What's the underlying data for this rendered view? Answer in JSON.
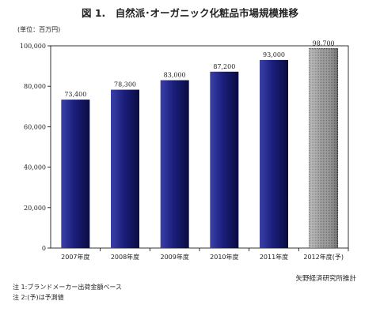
{
  "title": "図 1.　自然派･オーガニック化粧品市場規模推移",
  "unit_label": "(単位：百万円)",
  "source": "矢野経済研究所推計",
  "notes": [
    "注 1:ブランドメーカー出荷金額ベース",
    "注 2:(予)は予測値"
  ],
  "colors": {
    "bar": "#1a1f7a",
    "forecast_bar": "#888888",
    "axis": "#000000"
  },
  "chart_data": {
    "type": "bar",
    "title": "図 1.　自然派･オーガニック化粧品市場規模推移",
    "xlabel": "",
    "ylabel": "(単位：百万円)",
    "categories": [
      "2007年度",
      "2008年度",
      "2009年度",
      "2010年度",
      "2011年度",
      "2012年度(予)"
    ],
    "values": [
      73400,
      78300,
      83000,
      87200,
      93000,
      98700
    ],
    "value_labels": [
      "73,400",
      "78,300",
      "83,000",
      "87,200",
      "93,000",
      "98,700"
    ],
    "forecast": [
      false,
      false,
      false,
      false,
      false,
      true
    ],
    "ylim": [
      0,
      100000
    ],
    "yticks": [
      0,
      20000,
      40000,
      60000,
      80000,
      100000
    ],
    "ytick_labels": [
      "0",
      "20,000",
      "40,000",
      "60,000",
      "80,000",
      "100,000"
    ],
    "grid": false,
    "legend": "none"
  }
}
